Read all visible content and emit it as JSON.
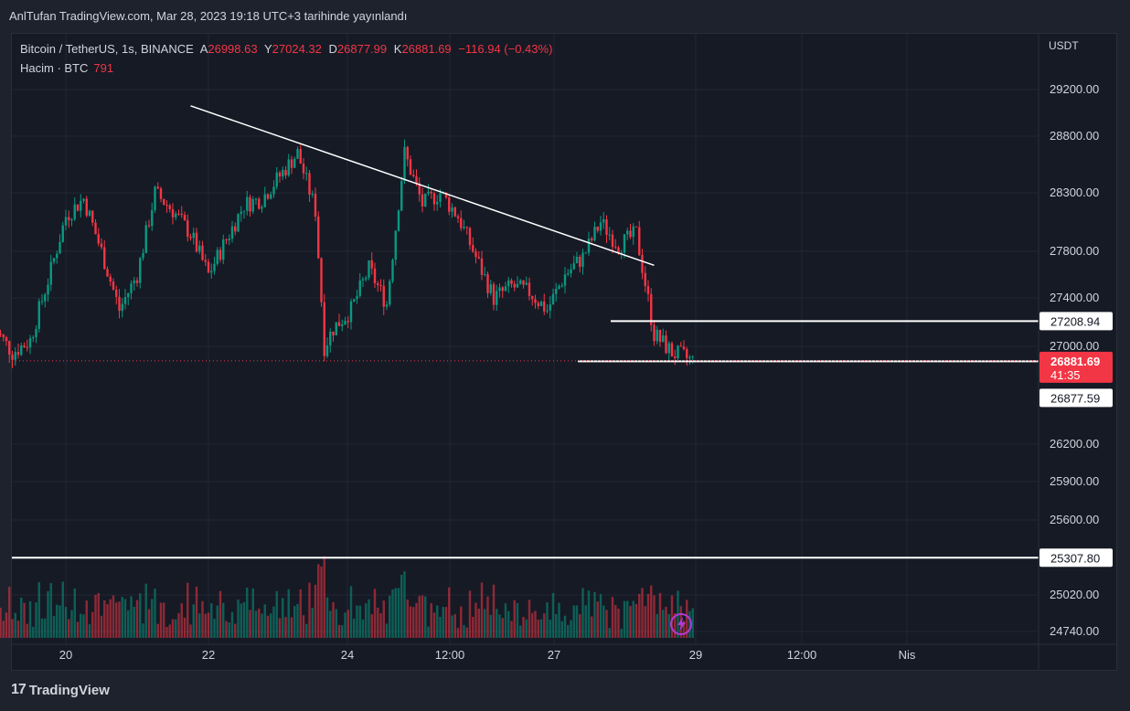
{
  "publication": "AnlTufan TradingView.com, Mar 28, 2023 19:18 UTC+3 tarihinde yayınlandı",
  "legend": {
    "symbol": "Bitcoin / TetherUS, 1s, BINANCE",
    "open_key": "A",
    "open": "26998.63",
    "high_key": "Y",
    "high": "27024.32",
    "low_key": "D",
    "low": "26877.99",
    "close_key": "K",
    "close": "26881.69",
    "change": "−116.94 (−0.43%)"
  },
  "volume_legend": {
    "label": "Hacim · BTC",
    "value": "791"
  },
  "currency": "USDT",
  "brand": "TradingView",
  "colors": {
    "up": "#089981",
    "down": "#f23645",
    "background": "#161a25",
    "line": "#ffffff"
  },
  "chart_data": {
    "type": "candlestick",
    "x_tick_labels": [
      "20",
      "22",
      "24",
      "12:00",
      "27",
      "29",
      "12:00",
      "Nis"
    ],
    "y_tick_labels": [
      "29200.00",
      "28800.00",
      "28300.00",
      "27800.00",
      "27400.00",
      "27000.00",
      "26200.00",
      "25900.00",
      "25600.00",
      "25020.00",
      "24740.00"
    ],
    "y_tick_values": [
      29200,
      28800,
      28300,
      27800,
      27400,
      27000,
      26200,
      25900,
      25600,
      25020,
      24740
    ],
    "price_labels": [
      {
        "text": "27208.94",
        "value": 27208.94,
        "kind": "level"
      },
      {
        "text": "26881.69",
        "countdown": "41:35",
        "value": 26881.69,
        "kind": "last"
      },
      {
        "text": "26877.59",
        "value": 26877.59,
        "kind": "level"
      },
      {
        "text": "25307.80",
        "value": 25307.8,
        "kind": "level"
      }
    ],
    "horizontal_lines": [
      27208.94,
      26877.59,
      25307.8
    ],
    "trendline": {
      "start": {
        "x": "Mar 21 ~18:00",
        "y": 29060
      },
      "end": {
        "x": "Mar 28 ~06:00",
        "y": 27680
      }
    },
    "close_path": [
      {
        "x": "Mar 19 00:00",
        "y": 27150
      },
      {
        "x": "Mar 19 06:00",
        "y": 26950
      },
      {
        "x": "Mar 19 12:00",
        "y": 27050
      },
      {
        "x": "Mar 19 18:00",
        "y": 27550
      },
      {
        "x": "Mar 20 00:00",
        "y": 28100
      },
      {
        "x": "Mar 20 06:00",
        "y": 28250
      },
      {
        "x": "Mar 20 12:00",
        "y": 27800
      },
      {
        "x": "Mar 20 18:00",
        "y": 27300
      },
      {
        "x": "Mar 21 00:00",
        "y": 27600
      },
      {
        "x": "Mar 21 06:00",
        "y": 28300
      },
      {
        "x": "Mar 21 12:00",
        "y": 28150
      },
      {
        "x": "Mar 21 18:00",
        "y": 27950
      },
      {
        "x": "Mar 22 00:00",
        "y": 27600
      },
      {
        "x": "Mar 22 06:00",
        "y": 27900
      },
      {
        "x": "Mar 22 12:00",
        "y": 28200
      },
      {
        "x": "Mar 22 18:00",
        "y": 28250
      },
      {
        "x": "Mar 23 00:00",
        "y": 28450
      },
      {
        "x": "Mar 23 06:00",
        "y": 28650
      },
      {
        "x": "Mar 23 12:00",
        "y": 28150
      },
      {
        "x": "Mar 23 15:00",
        "y": 27000
      },
      {
        "x": "Mar 23 18:00",
        "y": 27150
      },
      {
        "x": "Mar 24 00:00",
        "y": 27300
      },
      {
        "x": "Mar 24 06:00",
        "y": 27650
      },
      {
        "x": "Mar 24 12:00",
        "y": 27350
      },
      {
        "x": "Mar 24 18:00",
        "y": 28650
      },
      {
        "x": "Mar 25 00:00",
        "y": 28200
      },
      {
        "x": "Mar 25 06:00",
        "y": 28300
      },
      {
        "x": "Mar 25 12:00",
        "y": 28100
      },
      {
        "x": "Mar 25 18:00",
        "y": 27750
      },
      {
        "x": "Mar 26 00:00",
        "y": 27400
      },
      {
        "x": "Mar 26 06:00",
        "y": 27500
      },
      {
        "x": "Mar 26 12:00",
        "y": 27450
      },
      {
        "x": "Mar 26 18:00",
        "y": 27300
      },
      {
        "x": "Mar 27 00:00",
        "y": 27600
      },
      {
        "x": "Mar 27 06:00",
        "y": 27750
      },
      {
        "x": "Mar 27 12:00",
        "y": 28050
      },
      {
        "x": "Mar 27 18:00",
        "y": 27850
      },
      {
        "x": "Mar 28 00:00",
        "y": 27950
      },
      {
        "x": "Mar 28 06:00",
        "y": 27100
      },
      {
        "x": "Mar 28 12:00",
        "y": 26950
      },
      {
        "x": "Mar 28 19:00",
        "y": 26882
      }
    ]
  }
}
